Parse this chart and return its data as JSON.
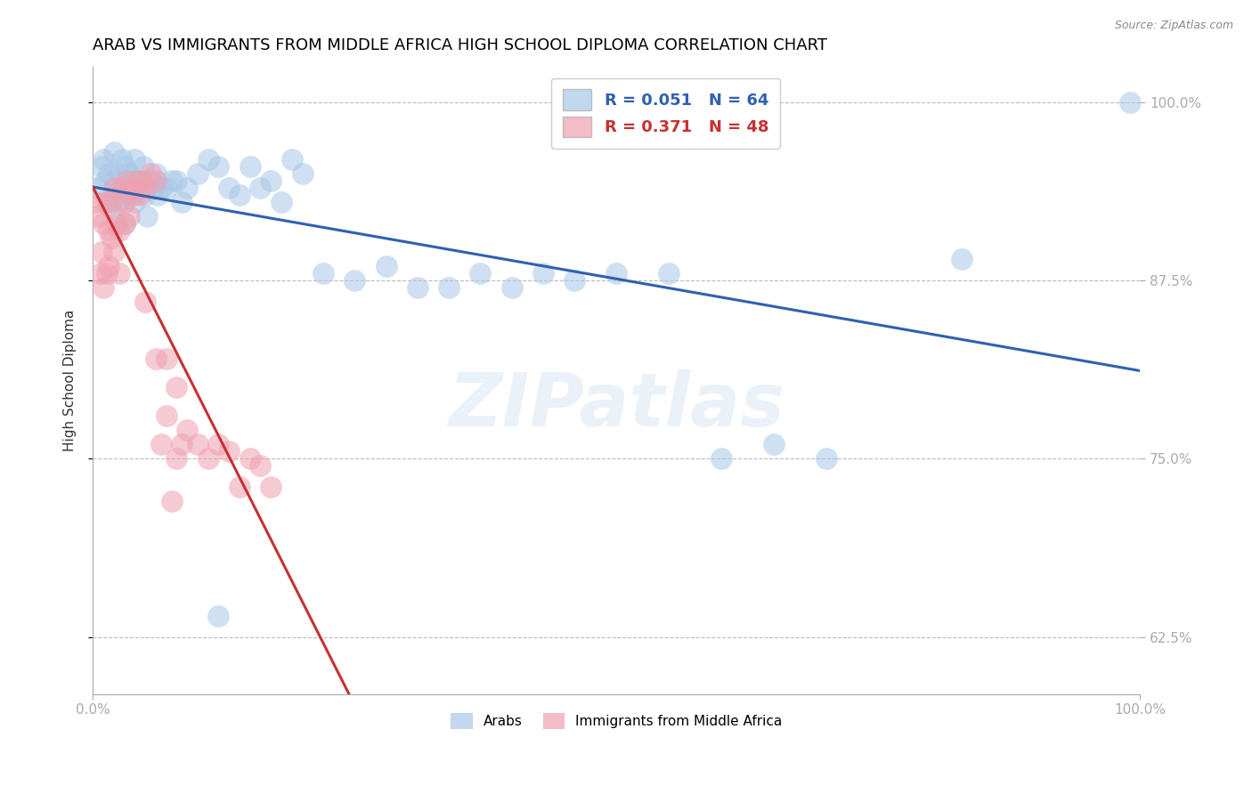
{
  "title": "ARAB VS IMMIGRANTS FROM MIDDLE AFRICA HIGH SCHOOL DIPLOMA CORRELATION CHART",
  "source_text": "Source: ZipAtlas.com",
  "ylabel": "High School Diploma",
  "y_ticks": [
    0.625,
    0.75,
    0.875,
    1.0
  ],
  "y_tick_labels": [
    "62.5%",
    "75.0%",
    "87.5%",
    "100.0%"
  ],
  "x_tick_left": "0.0%",
  "x_tick_right": "100.0%",
  "xlim": [
    0.0,
    1.0
  ],
  "ylim": [
    0.585,
    1.025
  ],
  "arab_R": 0.051,
  "arab_N": 64,
  "immig_R": 0.371,
  "immig_N": 48,
  "legend_labels": [
    "Arabs",
    "Immigrants from Middle Africa"
  ],
  "blue_color": "#a8c8e8",
  "pink_color": "#f0a0b0",
  "blue_line_color": "#3060b0",
  "pink_line_color": "#c83030",
  "watermark_text": "ZIPatlas",
  "title_fontsize": 13,
  "label_fontsize": 11,
  "tick_fontsize": 11,
  "source_fontsize": 9,
  "arab_x": [
    0.005,
    0.008,
    0.01,
    0.012,
    0.015,
    0.015,
    0.018,
    0.02,
    0.02,
    0.022,
    0.025,
    0.025,
    0.028,
    0.03,
    0.03,
    0.03,
    0.032,
    0.035,
    0.038,
    0.04,
    0.04,
    0.042,
    0.045,
    0.048,
    0.05,
    0.052,
    0.055,
    0.058,
    0.06,
    0.062,
    0.065,
    0.07,
    0.075,
    0.08,
    0.085,
    0.09,
    0.1,
    0.11,
    0.12,
    0.13,
    0.14,
    0.15,
    0.16,
    0.17,
    0.18,
    0.19,
    0.2,
    0.22,
    0.25,
    0.28,
    0.31,
    0.34,
    0.37,
    0.4,
    0.43,
    0.46,
    0.5,
    0.55,
    0.6,
    0.65,
    0.7,
    0.83,
    0.99,
    0.12
  ],
  "arab_y": [
    0.94,
    0.955,
    0.96,
    0.945,
    0.95,
    0.93,
    0.925,
    0.965,
    0.945,
    0.935,
    0.95,
    0.93,
    0.96,
    0.955,
    0.94,
    0.915,
    0.935,
    0.95,
    0.945,
    0.96,
    0.93,
    0.945,
    0.94,
    0.955,
    0.935,
    0.92,
    0.945,
    0.94,
    0.95,
    0.935,
    0.94,
    0.94,
    0.945,
    0.945,
    0.93,
    0.94,
    0.95,
    0.96,
    0.955,
    0.94,
    0.935,
    0.955,
    0.94,
    0.945,
    0.93,
    0.96,
    0.95,
    0.88,
    0.875,
    0.885,
    0.87,
    0.87,
    0.88,
    0.87,
    0.88,
    0.875,
    0.88,
    0.88,
    0.75,
    0.76,
    0.75,
    0.89,
    1.0,
    0.64
  ],
  "immig_x": [
    0.003,
    0.005,
    0.007,
    0.008,
    0.01,
    0.01,
    0.012,
    0.013,
    0.015,
    0.015,
    0.018,
    0.018,
    0.02,
    0.02,
    0.022,
    0.025,
    0.025,
    0.028,
    0.03,
    0.03,
    0.032,
    0.035,
    0.038,
    0.04,
    0.042,
    0.045,
    0.048,
    0.05,
    0.055,
    0.06,
    0.065,
    0.07,
    0.075,
    0.08,
    0.085,
    0.09,
    0.1,
    0.11,
    0.12,
    0.13,
    0.14,
    0.15,
    0.16,
    0.17,
    0.05,
    0.06,
    0.07,
    0.08
  ],
  "immig_y": [
    0.93,
    0.92,
    0.88,
    0.895,
    0.87,
    0.915,
    0.93,
    0.88,
    0.91,
    0.885,
    0.93,
    0.905,
    0.895,
    0.94,
    0.915,
    0.91,
    0.88,
    0.94,
    0.915,
    0.93,
    0.945,
    0.92,
    0.935,
    0.94,
    0.945,
    0.935,
    0.945,
    0.94,
    0.95,
    0.945,
    0.76,
    0.78,
    0.72,
    0.75,
    0.76,
    0.77,
    0.76,
    0.75,
    0.76,
    0.755,
    0.73,
    0.75,
    0.745,
    0.73,
    0.86,
    0.82,
    0.82,
    0.8
  ]
}
